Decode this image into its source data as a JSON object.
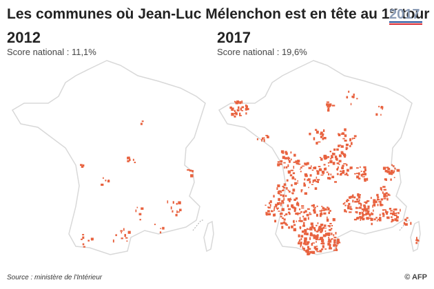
{
  "header": {
    "title": {
      "text": "Les communes où Jean-Luc Mélenchon est en tête au 1",
      "superscript": "er",
      "suffix": " tour"
    },
    "logo": "2017"
  },
  "maps": [
    {
      "year": "2012",
      "subtitle": "Score national : 11,1%"
    },
    {
      "year": "2017",
      "subtitle": "Score national : 19,6%"
    }
  ],
  "footer": {
    "source": "Source : ministère de l'Intérieur",
    "credit": "© AFP"
  }
}
